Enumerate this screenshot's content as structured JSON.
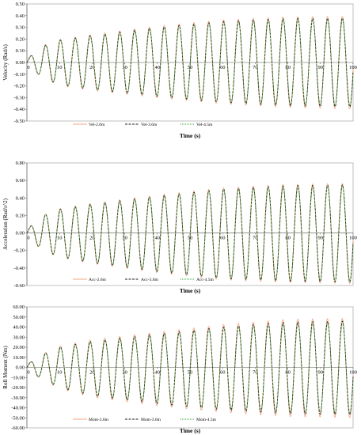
{
  "chart_data": [
    {
      "type": "line",
      "xlabel": "Time (s)",
      "ylabel": "Velocity (Rad/s)",
      "xlim": [
        0,
        100
      ],
      "ylim": [
        -0.5,
        0.5
      ],
      "x_ticks": [
        "0",
        "10",
        "20",
        "30",
        "40",
        "50",
        "60",
        "70",
        "80",
        "90",
        "100"
      ],
      "y_ticks": [
        "-0.50",
        "-0.40",
        "-0.30",
        "-0.20",
        "-0.10",
        "0.00",
        "0.10",
        "0.20",
        "0.30",
        "0.40",
        "0.50"
      ],
      "grid": false,
      "legend_position": "bottom",
      "period_s": 4.55,
      "envelope": {
        "x": [
          0,
          5,
          10,
          20,
          40,
          60,
          80,
          100
        ],
        "peak": [
          0.03,
          0.14,
          0.19,
          0.23,
          0.3,
          0.35,
          0.375,
          0.38
        ],
        "trough": [
          -0.03,
          -0.13,
          -0.19,
          -0.23,
          -0.29,
          -0.34,
          -0.37,
          -0.38
        ]
      },
      "series": [
        {
          "name": "Vel-2.6m",
          "color": "#f4a582",
          "dash": "solid",
          "scale": 1.04
        },
        {
          "name": "Vel-3.6m",
          "color": "#222222",
          "dash": "dashed",
          "scale": 1.0
        },
        {
          "name": "Vel-4.5m",
          "color": "#2ca02c",
          "dash": "dotted",
          "scale": 0.97
        }
      ]
    },
    {
      "type": "line",
      "xlabel": "Time (s)",
      "ylabel": "Acceleration (Rad/s^2)",
      "xlim": [
        0,
        100
      ],
      "ylim": [
        -0.6,
        0.8
      ],
      "x_ticks": [
        "0",
        "10",
        "20",
        "30",
        "40",
        "50",
        "60",
        "70",
        "80",
        "90",
        "100"
      ],
      "y_ticks": [
        "-0.60",
        "-0.40",
        "-0.20",
        "0.00",
        "0.20",
        "0.40",
        "0.60",
        "0.80"
      ],
      "grid": false,
      "legend_position": "bottom",
      "period_s": 4.55,
      "envelope": {
        "x": [
          0,
          5,
          10,
          20,
          40,
          60,
          80,
          100
        ],
        "peak": [
          0.04,
          0.2,
          0.27,
          0.33,
          0.42,
          0.5,
          0.54,
          0.55
        ],
        "trough": [
          -0.04,
          -0.2,
          -0.27,
          -0.34,
          -0.44,
          -0.52,
          -0.55,
          -0.56
        ]
      },
      "series": [
        {
          "name": "Acc-2.6m",
          "color": "#f4a582",
          "dash": "solid",
          "scale": 1.03
        },
        {
          "name": "Acc-3.6m",
          "color": "#222222",
          "dash": "dashed",
          "scale": 1.0
        },
        {
          "name": "Acc-4.5m",
          "color": "#2ca02c",
          "dash": "dotted",
          "scale": 0.98
        }
      ]
    },
    {
      "type": "line",
      "xlabel": "Time (s)",
      "ylabel": "Roll Moment (Nm)",
      "xlim": [
        0,
        100
      ],
      "ylim": [
        -60,
        60
      ],
      "x_ticks": [
        "0",
        "10",
        "20",
        "30",
        "40",
        "50",
        "60",
        "70",
        "80",
        "90",
        "100"
      ],
      "y_ticks": [
        "-60.00",
        "-50.00",
        "-40.00",
        "-30.00",
        "-20.00",
        "-10.00",
        "0.00",
        "10.00",
        "20.00",
        "30.00",
        "40.00",
        "50.00",
        "60.00"
      ],
      "grid": false,
      "legend_position": "bottom",
      "period_s": 4.55,
      "envelope": {
        "x": [
          0,
          5,
          10,
          20,
          40,
          60,
          80,
          100
        ],
        "peak": [
          3,
          13,
          20,
          26,
          33,
          40,
          45,
          46
        ],
        "trough": [
          -3,
          -12,
          -20,
          -28,
          -36,
          -42,
          -46,
          -47
        ]
      },
      "series": [
        {
          "name": "Mom-2.6m",
          "color": "#f4a582",
          "dash": "solid",
          "scale": 1.06
        },
        {
          "name": "Mom-3.6m",
          "color": "#222222",
          "dash": "dashed",
          "scale": 1.0
        },
        {
          "name": "Mom-4.5m",
          "color": "#2ca02c",
          "dash": "dotted",
          "scale": 0.96
        }
      ]
    }
  ]
}
